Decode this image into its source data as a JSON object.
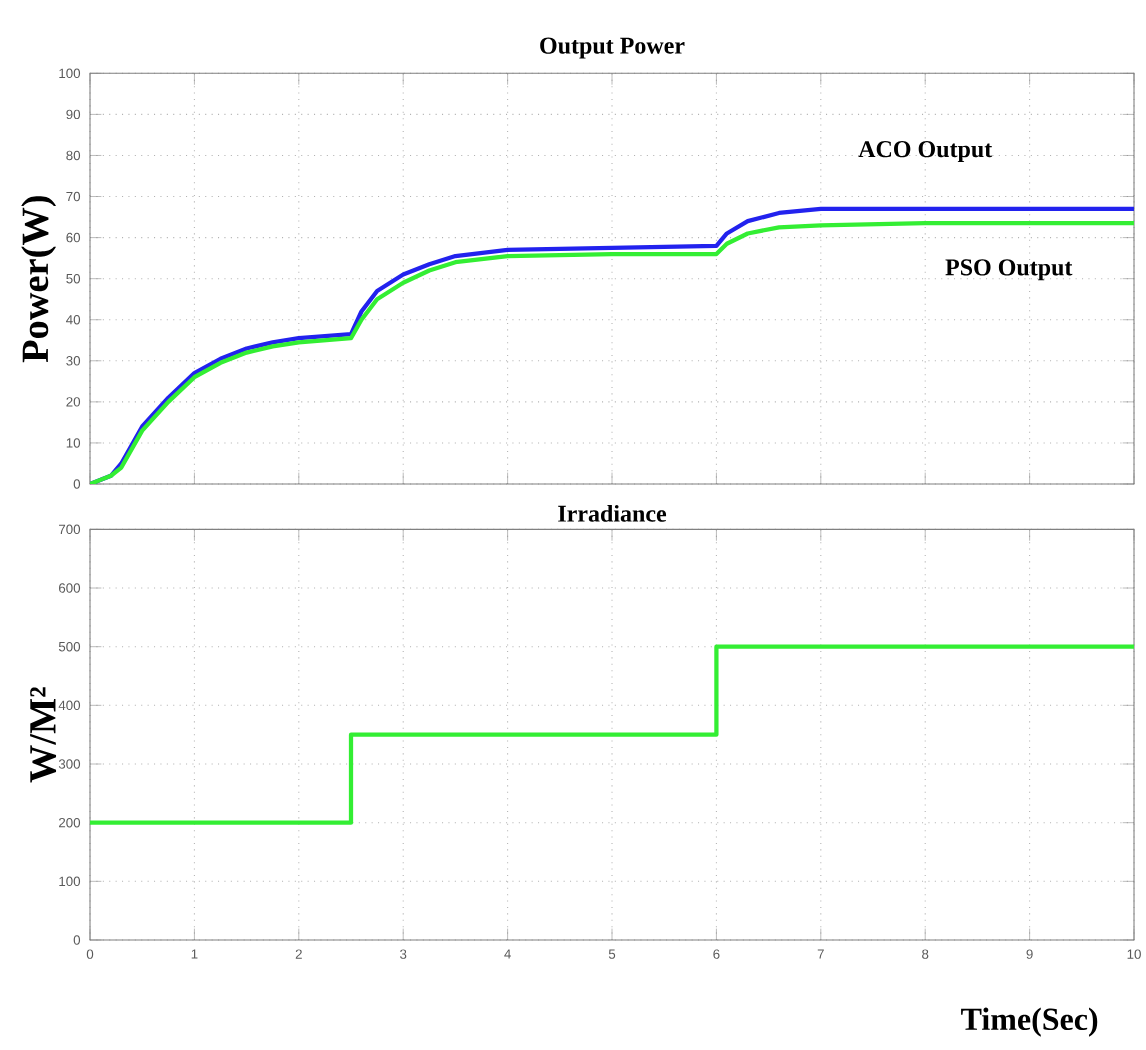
{
  "chart_data": [
    {
      "type": "line",
      "title": "Output Power",
      "ylabel": "Power(W)",
      "xlim": [
        0,
        10
      ],
      "ylim": [
        0,
        100
      ],
      "xticks": [
        0,
        1,
        2,
        3,
        4,
        5,
        6,
        7,
        8,
        9,
        10
      ],
      "yticks": [
        0,
        10,
        20,
        30,
        40,
        50,
        60,
        70,
        80,
        90,
        100
      ],
      "grid": true,
      "tick_labels": "y",
      "series": [
        {
          "name": "ACO Output",
          "color": "#2222ee",
          "x": [
            0,
            0.1,
            0.2,
            0.3,
            0.5,
            0.75,
            1,
            1.25,
            1.5,
            1.75,
            2,
            2.5,
            2.6,
            2.75,
            3,
            3.25,
            3.5,
            4,
            5,
            6,
            6.1,
            6.3,
            6.6,
            7,
            8,
            10
          ],
          "values": [
            0,
            null,
            2,
            5,
            14,
            21,
            27,
            30.5,
            33,
            34.5,
            35.5,
            36.5,
            42,
            47,
            51,
            53.5,
            55.5,
            57,
            57.5,
            58,
            61,
            64,
            66,
            67,
            67,
            67
          ]
        },
        {
          "name": "PSO Output",
          "color": "#33ee33",
          "x": [
            0,
            0.1,
            0.2,
            0.3,
            0.5,
            0.75,
            1,
            1.25,
            1.5,
            1.75,
            2,
            2.5,
            2.6,
            2.75,
            3,
            3.25,
            3.5,
            4,
            5,
            6,
            6.1,
            6.3,
            6.6,
            7,
            8,
            10
          ],
          "values": [
            0,
            1,
            2,
            4,
            13,
            20,
            26,
            29.5,
            32,
            33.5,
            34.5,
            35.5,
            40,
            45,
            49,
            52,
            54,
            55.5,
            56,
            56,
            58.5,
            61,
            62.5,
            63,
            63.5,
            63.5
          ]
        }
      ]
    },
    {
      "type": "step",
      "title": "Irradiance",
      "xlabel": "Time(Sec)",
      "ylabel": "W/M²",
      "xlim": [
        0,
        10
      ],
      "ylim": [
        0,
        700
      ],
      "xticks": [
        0,
        1,
        2,
        3,
        4,
        5,
        6,
        7,
        8,
        9,
        10
      ],
      "yticks": [
        0,
        100,
        200,
        300,
        400,
        500,
        600,
        700
      ],
      "grid": true,
      "series": [
        {
          "color": "#33ee33",
          "x": [
            0,
            2.5,
            6,
            10
          ],
          "values": [
            200,
            350,
            500,
            500
          ]
        }
      ]
    }
  ]
}
